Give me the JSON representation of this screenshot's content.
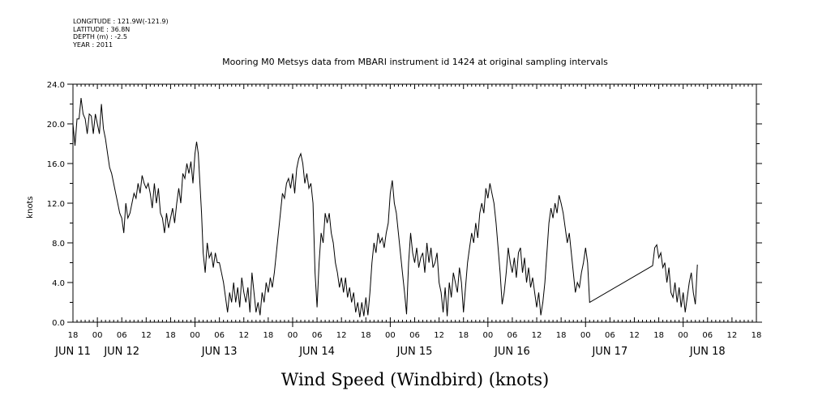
{
  "metadata": [
    {
      "key": "LONGITUDE",
      "value": "121.9W(-121.9)"
    },
    {
      "key": "LATITUDE",
      "value": "36.8N"
    },
    {
      "key": "DEPTH (m)",
      "value": "-2.5"
    },
    {
      "key": "YEAR",
      "value": "2011"
    }
  ],
  "chart_data": {
    "type": "line",
    "title": "Mooring M0 Metsys data from MBARI instrument id 1424 at original sampling intervals",
    "xlabel": "Wind Speed (Windbird) (knots)",
    "ylabel": "knots",
    "ylim": [
      0,
      24
    ],
    "yticks": [
      "0.0",
      "4.0",
      "8.0",
      "12.0",
      "16.0",
      "20.0",
      "24.0"
    ],
    "xlim_hours": [
      -6,
      162
    ],
    "hour_ticks": [
      {
        "t": -6,
        "label": "18"
      },
      {
        "t": 0,
        "label": "00"
      },
      {
        "t": 6,
        "label": "06"
      },
      {
        "t": 12,
        "label": "12"
      },
      {
        "t": 18,
        "label": "18"
      },
      {
        "t": 24,
        "label": "00"
      },
      {
        "t": 30,
        "label": "06"
      },
      {
        "t": 36,
        "label": "12"
      },
      {
        "t": 42,
        "label": "18"
      },
      {
        "t": 48,
        "label": "00"
      },
      {
        "t": 54,
        "label": "06"
      },
      {
        "t": 60,
        "label": "12"
      },
      {
        "t": 66,
        "label": "18"
      },
      {
        "t": 72,
        "label": "00"
      },
      {
        "t": 78,
        "label": "06"
      },
      {
        "t": 84,
        "label": "12"
      },
      {
        "t": 90,
        "label": "18"
      },
      {
        "t": 96,
        "label": "00"
      },
      {
        "t": 102,
        "label": "06"
      },
      {
        "t": 108,
        "label": "12"
      },
      {
        "t": 114,
        "label": "18"
      },
      {
        "t": 120,
        "label": "00"
      },
      {
        "t": 126,
        "label": "06"
      },
      {
        "t": 132,
        "label": "12"
      },
      {
        "t": 138,
        "label": "18"
      },
      {
        "t": 144,
        "label": "00"
      },
      {
        "t": 150,
        "label": "06"
      },
      {
        "t": 156,
        "label": "12"
      },
      {
        "t": 162,
        "label": "18"
      }
    ],
    "date_labels": [
      {
        "t": -6,
        "label": "JUN 11"
      },
      {
        "t": 6,
        "label": "JUN 12"
      },
      {
        "t": 30,
        "label": "JUN 13"
      },
      {
        "t": 54,
        "label": "JUN 14"
      },
      {
        "t": 78,
        "label": "JUN 15"
      },
      {
        "t": 102,
        "label": "JUN 16"
      },
      {
        "t": 126,
        "label": "JUN 17"
      },
      {
        "t": 150,
        "label": "JUN 18"
      }
    ],
    "series": [
      {
        "points": [
          [
            -6,
            20
          ],
          [
            -5.5,
            17.8
          ],
          [
            -5,
            20.5
          ],
          [
            -4.5,
            20.5
          ],
          [
            -4,
            22.6
          ],
          [
            -3.5,
            21
          ],
          [
            -3,
            20.5
          ],
          [
            -2.5,
            19
          ],
          [
            -2,
            21
          ],
          [
            -1.5,
            20.8
          ],
          [
            -1,
            19
          ],
          [
            -0.5,
            21
          ],
          [
            0,
            20
          ],
          [
            0.5,
            19
          ],
          [
            1,
            22
          ],
          [
            1.5,
            19.5
          ],
          [
            2,
            18.5
          ],
          [
            2.5,
            17
          ],
          [
            3,
            15.6
          ],
          [
            3.5,
            15
          ],
          [
            4,
            14
          ],
          [
            4.5,
            13
          ],
          [
            5,
            12
          ],
          [
            5.5,
            11
          ],
          [
            6,
            10.5
          ],
          [
            6.5,
            9
          ],
          [
            7,
            12
          ],
          [
            7.5,
            10.5
          ],
          [
            8,
            11
          ],
          [
            8.5,
            12
          ],
          [
            9,
            13
          ],
          [
            9.5,
            12.5
          ],
          [
            10,
            14
          ],
          [
            10.5,
            13
          ],
          [
            11,
            14.8
          ],
          [
            11.5,
            14
          ],
          [
            12,
            13.5
          ],
          [
            12.5,
            14
          ],
          [
            13,
            13
          ],
          [
            13.5,
            11.5
          ],
          [
            14,
            14
          ],
          [
            14.5,
            12
          ],
          [
            15,
            13.5
          ],
          [
            15.5,
            11
          ],
          [
            16,
            10.5
          ],
          [
            16.5,
            9
          ],
          [
            17,
            11
          ],
          [
            17.5,
            9.5
          ],
          [
            18,
            10.5
          ],
          [
            18.5,
            11.5
          ],
          [
            19,
            10
          ],
          [
            19.5,
            12
          ],
          [
            20,
            13.5
          ],
          [
            20.5,
            12
          ],
          [
            21,
            15
          ],
          [
            21.5,
            14.5
          ],
          [
            22,
            16
          ],
          [
            22.5,
            15
          ],
          [
            23,
            16.2
          ],
          [
            23.5,
            14
          ],
          [
            24,
            17
          ],
          [
            24.4,
            18.2
          ],
          [
            24.8,
            17
          ],
          [
            25.2,
            14
          ],
          [
            25.6,
            11
          ],
          [
            26,
            7
          ],
          [
            26.5,
            5
          ],
          [
            27,
            8
          ],
          [
            27.5,
            6.5
          ],
          [
            28,
            7
          ],
          [
            28.5,
            5.5
          ],
          [
            29,
            7
          ],
          [
            29.5,
            6
          ],
          [
            30,
            6
          ],
          [
            30.5,
            5
          ],
          [
            31,
            4
          ],
          [
            31.5,
            2.5
          ],
          [
            32,
            1
          ],
          [
            32.5,
            3
          ],
          [
            33,
            2
          ],
          [
            33.5,
            4
          ],
          [
            34,
            2
          ],
          [
            34.5,
            3.5
          ],
          [
            35,
            1.5
          ],
          [
            35.5,
            4.5
          ],
          [
            36,
            3
          ],
          [
            36.5,
            2
          ],
          [
            37,
            3.5
          ],
          [
            37.5,
            1
          ],
          [
            38,
            5
          ],
          [
            38.5,
            3
          ],
          [
            39,
            1
          ],
          [
            39.5,
            2
          ],
          [
            40,
            0.7
          ],
          [
            40.5,
            3
          ],
          [
            41,
            2
          ],
          [
            41.5,
            4
          ],
          [
            42,
            3
          ],
          [
            42.5,
            4.5
          ],
          [
            43,
            3.5
          ],
          [
            43.5,
            5
          ],
          [
            44,
            7
          ],
          [
            44.5,
            9
          ],
          [
            45,
            11
          ],
          [
            45.5,
            13
          ],
          [
            46,
            12.5
          ],
          [
            46.5,
            14
          ],
          [
            47,
            14.5
          ],
          [
            47.5,
            13.5
          ],
          [
            48,
            15
          ],
          [
            48.5,
            13
          ],
          [
            49,
            15.5
          ],
          [
            49.5,
            16.5
          ],
          [
            50,
            17
          ],
          [
            50.5,
            16
          ],
          [
            51,
            14
          ],
          [
            51.5,
            15
          ],
          [
            52,
            13.5
          ],
          [
            52.5,
            14
          ],
          [
            53,
            12
          ],
          [
            53.5,
            5
          ],
          [
            54,
            1.5
          ],
          [
            54.5,
            6
          ],
          [
            55,
            9
          ],
          [
            55.5,
            8
          ],
          [
            56,
            11
          ],
          [
            56.5,
            10
          ],
          [
            57,
            11
          ],
          [
            57.5,
            9
          ],
          [
            58,
            8
          ],
          [
            58.5,
            6
          ],
          [
            59,
            5
          ],
          [
            59.5,
            3.5
          ],
          [
            60,
            4.5
          ],
          [
            60.5,
            3
          ],
          [
            61,
            4.5
          ],
          [
            61.5,
            2.5
          ],
          [
            62,
            3.5
          ],
          [
            62.5,
            2
          ],
          [
            63,
            3
          ],
          [
            63.5,
            1
          ],
          [
            64,
            2
          ],
          [
            64.5,
            0.5
          ],
          [
            65,
            2
          ],
          [
            65.5,
            0.6
          ],
          [
            66,
            2.5
          ],
          [
            66.5,
            0.7
          ],
          [
            67,
            3
          ],
          [
            67.5,
            6
          ],
          [
            68,
            8
          ],
          [
            68.5,
            7
          ],
          [
            69,
            9
          ],
          [
            69.5,
            8
          ],
          [
            70,
            8.5
          ],
          [
            70.5,
            7.5
          ],
          [
            71,
            9
          ],
          [
            71.5,
            10
          ],
          [
            72,
            13
          ],
          [
            72.5,
            14.3
          ],
          [
            73,
            12
          ],
          [
            73.5,
            11
          ],
          [
            74,
            9
          ],
          [
            74.5,
            7
          ],
          [
            75,
            5
          ],
          [
            75.5,
            3
          ],
          [
            76,
            0.8
          ],
          [
            76.5,
            6
          ],
          [
            77,
            9
          ],
          [
            77.5,
            7
          ],
          [
            78,
            6
          ],
          [
            78.5,
            7.5
          ],
          [
            79,
            5.5
          ],
          [
            79.5,
            6.5
          ],
          [
            80,
            7
          ],
          [
            80.5,
            5
          ],
          [
            81,
            8
          ],
          [
            81.5,
            6
          ],
          [
            82,
            7.5
          ],
          [
            82.5,
            5.5
          ],
          [
            83,
            6
          ],
          [
            83.5,
            7
          ],
          [
            84,
            4
          ],
          [
            84.5,
            3
          ],
          [
            85,
            1
          ],
          [
            85.5,
            3.5
          ],
          [
            86,
            0.6
          ],
          [
            86.5,
            4
          ],
          [
            87,
            2.5
          ],
          [
            87.5,
            5
          ],
          [
            88,
            4
          ],
          [
            88.5,
            3
          ],
          [
            89,
            5.5
          ],
          [
            89.5,
            4
          ],
          [
            90,
            1
          ],
          [
            90.5,
            3.5
          ],
          [
            91,
            6
          ],
          [
            91.5,
            7.5
          ],
          [
            92,
            9
          ],
          [
            92.5,
            8
          ],
          [
            93,
            10
          ],
          [
            93.5,
            8.5
          ],
          [
            94,
            11
          ],
          [
            94.5,
            12
          ],
          [
            95,
            11
          ],
          [
            95.5,
            13.5
          ],
          [
            96,
            12.5
          ],
          [
            96.5,
            14
          ],
          [
            97,
            13
          ],
          [
            97.5,
            12
          ],
          [
            98,
            10
          ],
          [
            98.5,
            7.5
          ],
          [
            99,
            5
          ],
          [
            99.5,
            1.8
          ],
          [
            100,
            3
          ],
          [
            100.5,
            5
          ],
          [
            101,
            7.5
          ],
          [
            101.5,
            6
          ],
          [
            102,
            5
          ],
          [
            102.5,
            6.5
          ],
          [
            103,
            4.5
          ],
          [
            103.5,
            7
          ],
          [
            104,
            7.5
          ],
          [
            104.5,
            5
          ],
          [
            105,
            6.5
          ],
          [
            105.5,
            4
          ],
          [
            106,
            5.5
          ],
          [
            106.5,
            3.5
          ],
          [
            107,
            4.5
          ],
          [
            107.5,
            3
          ],
          [
            108,
            1.5
          ],
          [
            108.5,
            3
          ],
          [
            109,
            0.7
          ],
          [
            109.5,
            2
          ],
          [
            110,
            4
          ],
          [
            110.5,
            7
          ],
          [
            111,
            10
          ],
          [
            111.5,
            11.5
          ],
          [
            112,
            10.5
          ],
          [
            112.5,
            12
          ],
          [
            113,
            11
          ],
          [
            113.5,
            12.8
          ],
          [
            114,
            12
          ],
          [
            114.5,
            11
          ],
          [
            115,
            9.5
          ],
          [
            115.5,
            8
          ],
          [
            116,
            9
          ],
          [
            116.5,
            7
          ],
          [
            117,
            5
          ],
          [
            117.5,
            3
          ],
          [
            118,
            4
          ],
          [
            118.5,
            3.5
          ],
          [
            119,
            5
          ],
          [
            119.5,
            6
          ],
          [
            120,
            7.5
          ],
          [
            120.5,
            6
          ],
          [
            121,
            2
          ],
          [
            136.5,
            5.7
          ],
          [
            137,
            7.5
          ],
          [
            137.5,
            7.8
          ],
          [
            138,
            6.5
          ],
          [
            138.5,
            7
          ],
          [
            139,
            5.5
          ],
          [
            139.5,
            6
          ],
          [
            140,
            4
          ],
          [
            140.5,
            5.5
          ],
          [
            141,
            3
          ],
          [
            141.5,
            2.5
          ],
          [
            142,
            4
          ],
          [
            142.5,
            2
          ],
          [
            143,
            3.5
          ],
          [
            143.5,
            1.5
          ],
          [
            144,
            3
          ],
          [
            144.5,
            1
          ],
          [
            145,
            2.5
          ],
          [
            145.5,
            4
          ],
          [
            146,
            5
          ],
          [
            146.5,
            3
          ],
          [
            147,
            1.8
          ],
          [
            147.5,
            5.8
          ]
        ]
      }
    ]
  }
}
